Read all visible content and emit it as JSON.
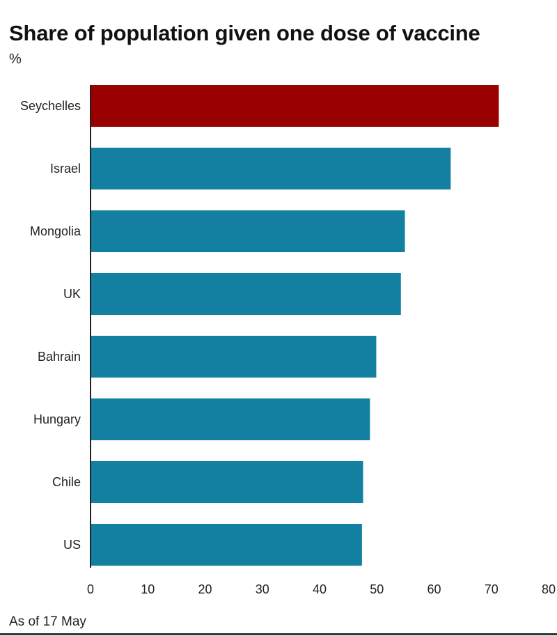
{
  "chart_data": {
    "type": "bar",
    "orientation": "horizontal",
    "title": "Share of population given one dose of vaccine",
    "unit_label": "%",
    "categories": [
      "Seychelles",
      "Israel",
      "Mongolia",
      "UK",
      "Bahrain",
      "Hungary",
      "Chile",
      "US"
    ],
    "values": [
      71.3,
      62.9,
      54.9,
      54.2,
      49.9,
      48.8,
      47.6,
      47.4
    ],
    "highlight_category": "Seychelles",
    "xlim": [
      0,
      80
    ],
    "xticks": [
      0,
      10,
      20,
      30,
      40,
      50,
      60,
      70,
      80
    ],
    "grid": false,
    "colors": {
      "highlight": "#990000",
      "default": "#1380A1",
      "axis": "#222222"
    },
    "note": "As of 17 May"
  }
}
